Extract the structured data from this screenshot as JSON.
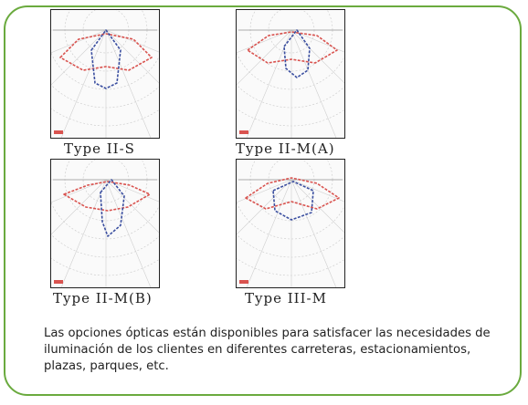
{
  "colors": {
    "frame": "#6aaa3e",
    "curve_red": "#d9534f",
    "curve_blue": "#3b4fa0"
  },
  "panels": [
    {
      "caption": "Type II-S",
      "pattern": "wide-symmetric"
    },
    {
      "caption": "Type II-M(A)",
      "pattern": "medium-asymmetric"
    },
    {
      "caption": "Type II-M(B)",
      "pattern": "medium-narrow"
    },
    {
      "caption": "Type III-M",
      "pattern": "wide-flat"
    }
  ],
  "description": "Las opciones ópticas están disponibles para satisfacer las necesidades de iluminación de los clientes en diferentes carreteras, estacionamientos, plazas, parques, etc."
}
